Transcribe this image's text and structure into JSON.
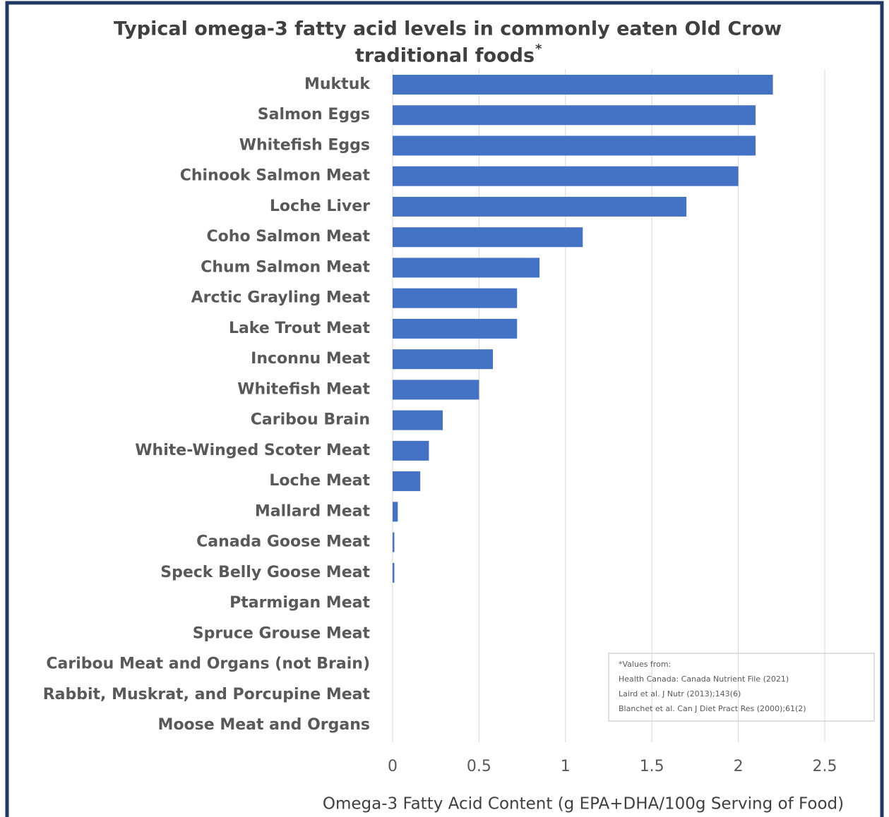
{
  "chart_data": {
    "type": "hbar",
    "title": [
      "Typical omega-3 fatty acid levels in commonly eaten Old Crow",
      "traditional foods"
    ],
    "title_marker": "*",
    "categories": [
      "Muktuk",
      "Salmon Eggs",
      "Whitefish Eggs",
      "Chinook Salmon Meat",
      "Loche Liver",
      "Coho Salmon Meat",
      "Chum Salmon Meat",
      "Arctic Grayling Meat",
      "Lake Trout Meat",
      "Inconnu Meat",
      "Whitefish Meat",
      "Caribou Brain",
      "White-Winged Scoter Meat",
      "Loche Meat",
      "Mallard Meat",
      "Canada Goose Meat",
      "Speck Belly Goose Meat",
      "Ptarmigan Meat",
      "Spruce Grouse Meat",
      "Caribou Meat and Organs (not Brain)",
      "Rabbit, Muskrat, and Porcupine Meat",
      "Moose Meat and Organs"
    ],
    "values": [
      2.2,
      2.1,
      2.1,
      2.0,
      1.7,
      1.1,
      0.85,
      0.72,
      0.72,
      0.58,
      0.5,
      0.29,
      0.21,
      0.16,
      0.03,
      0.01,
      0.01,
      0,
      0,
      0,
      0,
      0
    ],
    "color": "#4472c4",
    "xlim": [
      0,
      2.8
    ],
    "xticks": [
      0,
      0.5,
      1,
      1.5,
      2,
      2.5
    ],
    "grid": true,
    "x_label": "Omega-3 Fatty Acid Content (g EPA+DHA/100g Serving of Food)",
    "note": [
      "*Values from:",
      "Health Canada: Canada Nutrient File (2021)",
      "Laird et al. J Nutr (2013);143(6)",
      "Blanchet et al. Can J Diet Pract Res (2000);61(2)"
    ]
  }
}
